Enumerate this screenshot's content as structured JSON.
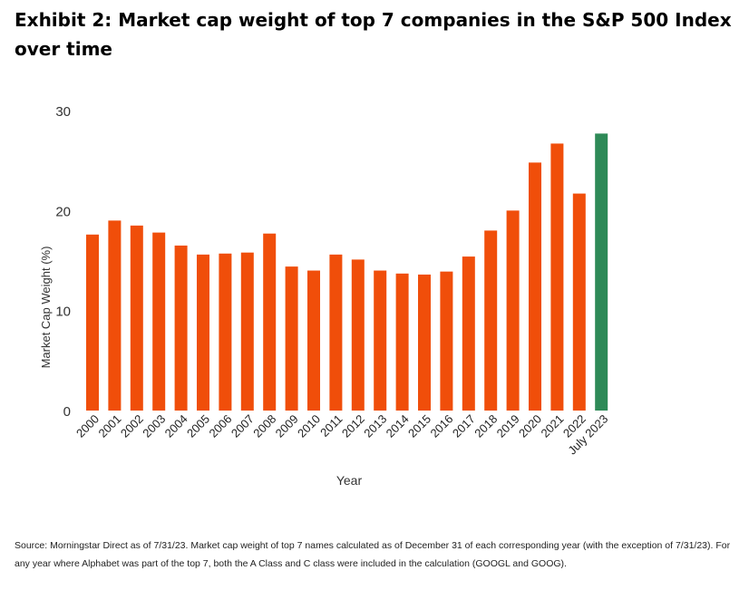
{
  "title": "Exhibit 2: Market cap weight of top 7 companies in the S&P 500 Index over time",
  "source": "Source: Morningstar Direct as of 7/31/23. Market cap weight of top 7 names calculated as of December 31 of each corresponding year (with the exception of 7/31/23). For any year where Alphabet was part of the top 7, both the A Class and C class were included in the calculation (GOOGL and GOOG).",
  "colors": {
    "bar": "#f04e0a",
    "highlight": "#2e8a57"
  },
  "chart_data": {
    "type": "bar",
    "title": "",
    "xlabel": "Year",
    "ylabel": "Market Cap Weight (%)",
    "ylim": [
      0,
      30
    ],
    "yticks": [
      0,
      10,
      20,
      30
    ],
    "grid": false,
    "categories": [
      "2000",
      "2001",
      "2002",
      "2003",
      "2004",
      "2005",
      "2006",
      "2007",
      "2008",
      "2009",
      "2010",
      "2011",
      "2012",
      "2013",
      "2014",
      "2015",
      "2016",
      "2017",
      "2018",
      "2019",
      "2020",
      "2021",
      "2022",
      "July 2023"
    ],
    "values": [
      17.6,
      19.0,
      18.5,
      17.8,
      16.5,
      15.6,
      15.7,
      15.8,
      17.7,
      14.4,
      14.0,
      15.6,
      15.1,
      14.0,
      13.7,
      13.6,
      13.9,
      15.4,
      18.0,
      20.0,
      24.8,
      26.7,
      21.7,
      27.7
    ],
    "highlight_index": 23
  }
}
